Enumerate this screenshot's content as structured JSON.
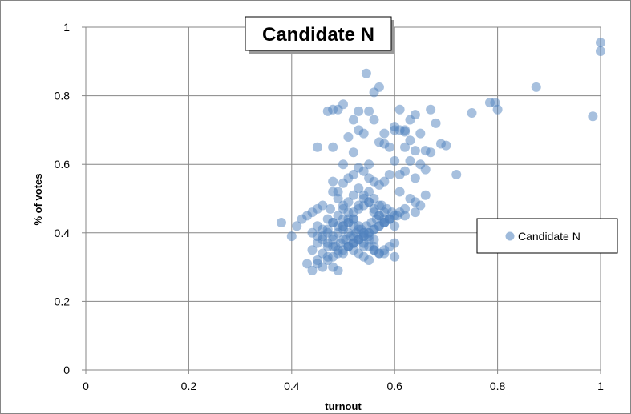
{
  "chart_data": {
    "type": "scatter",
    "title": "Candidate N",
    "xlabel": "turnout",
    "ylabel": "% of votes",
    "xlim": [
      0,
      1
    ],
    "ylim": [
      0,
      1
    ],
    "x_ticks": [
      "0",
      "0.2",
      "0.4",
      "0.6",
      "0.8",
      "1"
    ],
    "y_ticks": [
      "0",
      "0.2",
      "0.4",
      "0.6",
      "0.8",
      "1"
    ],
    "grid": true,
    "legend": {
      "position": "right",
      "entries": [
        "Candidate N"
      ]
    },
    "colors": {
      "marker": "#4f81bd",
      "grid": "#868686",
      "axis": "#868686"
    },
    "series": [
      {
        "name": "Candidate N",
        "x": [
          0.545,
          0.57,
          0.56,
          0.48,
          0.49,
          0.6,
          0.62,
          0.64,
          0.67,
          0.68,
          0.61,
          0.63,
          0.75,
          0.785,
          0.795,
          0.8,
          0.875,
          0.985,
          1.0,
          1.0,
          0.5,
          0.47,
          0.53,
          0.55,
          0.52,
          0.56,
          0.58,
          0.6,
          0.61,
          0.62,
          0.63,
          0.65,
          0.66,
          0.69,
          0.7,
          0.72,
          0.45,
          0.48,
          0.51,
          0.53,
          0.54,
          0.57,
          0.59,
          0.62,
          0.64,
          0.67,
          0.52,
          0.58,
          0.48,
          0.5,
          0.55,
          0.6,
          0.63,
          0.65,
          0.62,
          0.66,
          0.61,
          0.64,
          0.59,
          0.58,
          0.57,
          0.56,
          0.55,
          0.54,
          0.53,
          0.52,
          0.51,
          0.5,
          0.49,
          0.475,
          0.46,
          0.45,
          0.44,
          0.43,
          0.42,
          0.41,
          0.4,
          0.38,
          0.44,
          0.45,
          0.46,
          0.47,
          0.48,
          0.49,
          0.5,
          0.51,
          0.52,
          0.53,
          0.54,
          0.55,
          0.56,
          0.57,
          0.58,
          0.59,
          0.6,
          0.61,
          0.47,
          0.48,
          0.49,
          0.5,
          0.51,
          0.52,
          0.53,
          0.54,
          0.55,
          0.56,
          0.57,
          0.58,
          0.59,
          0.6,
          0.45,
          0.46,
          0.47,
          0.48,
          0.49,
          0.5,
          0.51,
          0.52,
          0.53,
          0.54,
          0.55,
          0.56,
          0.57,
          0.58,
          0.59,
          0.44,
          0.45,
          0.46,
          0.47,
          0.48,
          0.49,
          0.5,
          0.51,
          0.52,
          0.53,
          0.54,
          0.55,
          0.56,
          0.57,
          0.58,
          0.59,
          0.6,
          0.43,
          0.44,
          0.45,
          0.46,
          0.47,
          0.48,
          0.49,
          0.5,
          0.51,
          0.52,
          0.53,
          0.54,
          0.55,
          0.56,
          0.57,
          0.58,
          0.48,
          0.49,
          0.5,
          0.51,
          0.52,
          0.53,
          0.54,
          0.55,
          0.56,
          0.57,
          0.5,
          0.51,
          0.52,
          0.53,
          0.54,
          0.55,
          0.56,
          0.51,
          0.52,
          0.53,
          0.54,
          0.55,
          0.45,
          0.46,
          0.47,
          0.48,
          0.5,
          0.52,
          0.54,
          0.56,
          0.58,
          0.6,
          0.62,
          0.64,
          0.61,
          0.63,
          0.65,
          0.62,
          0.64,
          0.66,
          0.575,
          0.585,
          0.595,
          0.605,
          0.565,
          0.555,
          0.545,
          0.535,
          0.525,
          0.515,
          0.505,
          0.495,
          0.485,
          0.53,
          0.54,
          0.55,
          0.52,
          0.51,
          0.5,
          0.56,
          0.57,
          0.58,
          0.49,
          0.48,
          0.47
        ],
        "y": [
          0.865,
          0.825,
          0.81,
          0.76,
          0.76,
          0.71,
          0.695,
          0.745,
          0.76,
          0.72,
          0.76,
          0.73,
          0.75,
          0.78,
          0.78,
          0.76,
          0.825,
          0.74,
          0.955,
          0.93,
          0.775,
          0.755,
          0.755,
          0.755,
          0.73,
          0.73,
          0.69,
          0.7,
          0.7,
          0.7,
          0.67,
          0.69,
          0.64,
          0.66,
          0.655,
          0.57,
          0.65,
          0.65,
          0.68,
          0.7,
          0.69,
          0.665,
          0.65,
          0.65,
          0.64,
          0.635,
          0.635,
          0.66,
          0.55,
          0.6,
          0.6,
          0.61,
          0.61,
          0.6,
          0.58,
          0.585,
          0.57,
          0.56,
          0.57,
          0.55,
          0.54,
          0.55,
          0.56,
          0.58,
          0.59,
          0.57,
          0.56,
          0.545,
          0.52,
          0.47,
          0.48,
          0.47,
          0.46,
          0.45,
          0.44,
          0.42,
          0.39,
          0.43,
          0.4,
          0.39,
          0.38,
          0.37,
          0.36,
          0.35,
          0.34,
          0.36,
          0.37,
          0.38,
          0.39,
          0.4,
          0.41,
          0.42,
          0.43,
          0.44,
          0.45,
          0.46,
          0.44,
          0.43,
          0.42,
          0.41,
          0.4,
          0.39,
          0.38,
          0.37,
          0.36,
          0.35,
          0.34,
          0.35,
          0.36,
          0.37,
          0.31,
          0.3,
          0.32,
          0.33,
          0.34,
          0.35,
          0.36,
          0.37,
          0.38,
          0.39,
          0.4,
          0.41,
          0.42,
          0.43,
          0.44,
          0.29,
          0.32,
          0.34,
          0.36,
          0.38,
          0.4,
          0.42,
          0.44,
          0.46,
          0.48,
          0.5,
          0.52,
          0.5,
          0.48,
          0.46,
          0.44,
          0.42,
          0.31,
          0.35,
          0.37,
          0.39,
          0.41,
          0.43,
          0.45,
          0.47,
          0.49,
          0.51,
          0.53,
          0.51,
          0.49,
          0.47,
          0.45,
          0.43,
          0.52,
          0.5,
          0.48,
          0.46,
          0.44,
          0.42,
          0.4,
          0.38,
          0.36,
          0.34,
          0.44,
          0.43,
          0.42,
          0.41,
          0.4,
          0.39,
          0.38,
          0.36,
          0.35,
          0.34,
          0.33,
          0.32,
          0.42,
          0.41,
          0.4,
          0.39,
          0.38,
          0.37,
          0.36,
          0.35,
          0.34,
          0.33,
          0.45,
          0.46,
          0.52,
          0.5,
          0.48,
          0.47,
          0.49,
          0.51,
          0.48,
          0.47,
          0.46,
          0.45,
          0.44,
          0.43,
          0.42,
          0.41,
          0.4,
          0.39,
          0.38,
          0.37,
          0.36,
          0.47,
          0.48,
          0.49,
          0.44,
          0.43,
          0.42,
          0.46,
          0.45,
          0.44,
          0.29,
          0.3,
          0.33
        ]
      }
    ]
  }
}
